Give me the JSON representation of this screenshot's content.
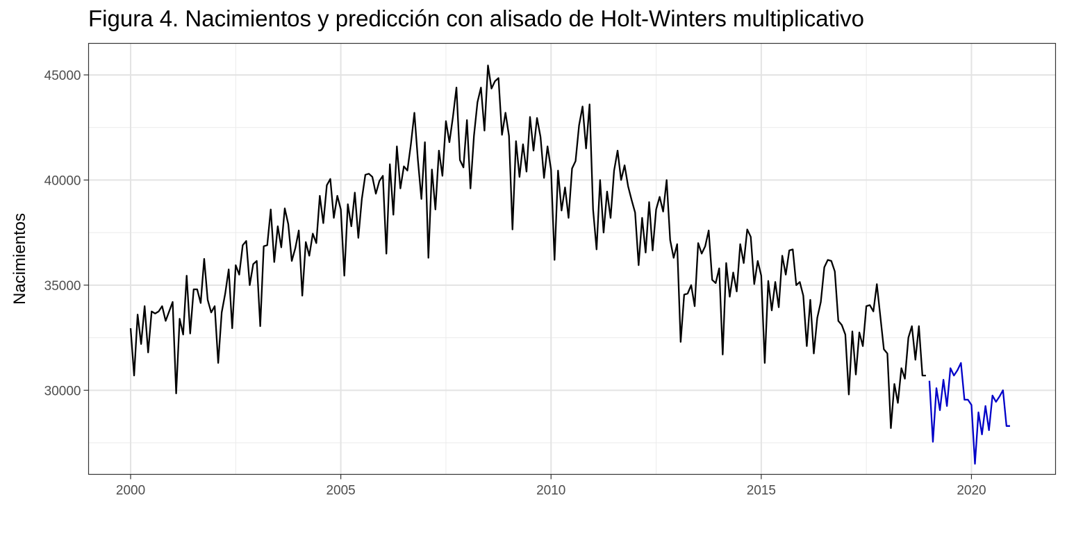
{
  "chart_data": {
    "type": "line",
    "title": "Figura 4. Nacimientos y predicción con alisado de Holt-Winters multiplicativo",
    "xlabel": "",
    "ylabel": "Nacimientos",
    "xlim": [
      1999,
      2022
    ],
    "ylim": [
      26000,
      46500
    ],
    "x_ticks": [
      2000,
      2005,
      2010,
      2015,
      2020
    ],
    "y_ticks": [
      30000,
      35000,
      40000,
      45000
    ],
    "grid": true,
    "legend": "none",
    "x_start": 2000,
    "x_step": 0.0833333,
    "series": [
      {
        "color": "#000000",
        "values": [
          32950,
          30700,
          33600,
          32200,
          34000,
          31800,
          33750,
          33650,
          33750,
          34000,
          33300,
          33750,
          34200,
          29850,
          33400,
          32650,
          35450,
          32700,
          34800,
          34800,
          34150,
          36250,
          34300,
          33700,
          34000,
          31300,
          33700,
          34600,
          35750,
          32950,
          35950,
          35500,
          36900,
          37100,
          35000,
          36000,
          36150,
          33050,
          36850,
          36900,
          38600,
          36100,
          37800,
          36800,
          38650,
          37900,
          36150,
          36750,
          37600,
          34500,
          37050,
          36400,
          37450,
          37000,
          39250,
          37950,
          39750,
          40050,
          38200,
          39250,
          38600,
          35450,
          38850,
          37800,
          39400,
          37250,
          39100,
          40250,
          40300,
          40150,
          39350,
          39950,
          40200,
          36500,
          40750,
          38350,
          41600,
          39600,
          40650,
          40450,
          41700,
          43200,
          40950,
          39100,
          41800,
          36300,
          40500,
          38600,
          41400,
          40200,
          42800,
          41800,
          43000,
          44400,
          40950,
          40600,
          42850,
          39600,
          42100,
          43700,
          44400,
          42350,
          45450,
          44350,
          44700,
          44850,
          42150,
          43200,
          42100,
          37650,
          41850,
          40150,
          41700,
          40400,
          43000,
          41400,
          42950,
          42050,
          40100,
          41600,
          40500,
          36200,
          40450,
          38550,
          39650,
          38200,
          40550,
          40900,
          42600,
          43500,
          41500,
          43600,
          38600,
          36700,
          40000,
          37500,
          39450,
          38200,
          40450,
          41400,
          40000,
          40700,
          39700,
          39050,
          38450,
          35950,
          38200,
          36550,
          38950,
          36650,
          38600,
          39200,
          38500,
          40000,
          37150,
          36300,
          36950,
          32300,
          34550,
          34600,
          35000,
          34000,
          37000,
          36500,
          36850,
          37600,
          35250,
          35100,
          35800,
          31700,
          36050,
          34450,
          35600,
          34700,
          36950,
          36050,
          37650,
          37300,
          35050,
          36150,
          35450,
          31300,
          35200,
          33800,
          35150,
          33950,
          36400,
          35500,
          36650,
          36700,
          35000,
          35150,
          34500,
          32100,
          34300,
          31750,
          33450,
          34200,
          35850,
          36200,
          36150,
          35650,
          33300,
          33100,
          32650,
          29800,
          32800,
          30750,
          32750,
          32100,
          34000,
          34050,
          33750,
          35050,
          33500,
          31950,
          31750,
          28200,
          30300,
          29400,
          31050,
          30550,
          32500,
          33050,
          31450,
          33050,
          30700,
          30700
        ]
      },
      {
        "color": "#0000c8",
        "start_index": 228,
        "values": [
          30450,
          27550,
          30100,
          29050,
          30500,
          29250,
          31050,
          30700,
          30950,
          31300,
          29550,
          29550,
          29300,
          26500,
          28950,
          27900,
          29250,
          28100,
          29750,
          29450,
          29700,
          30000,
          28300,
          28300
        ]
      }
    ]
  }
}
